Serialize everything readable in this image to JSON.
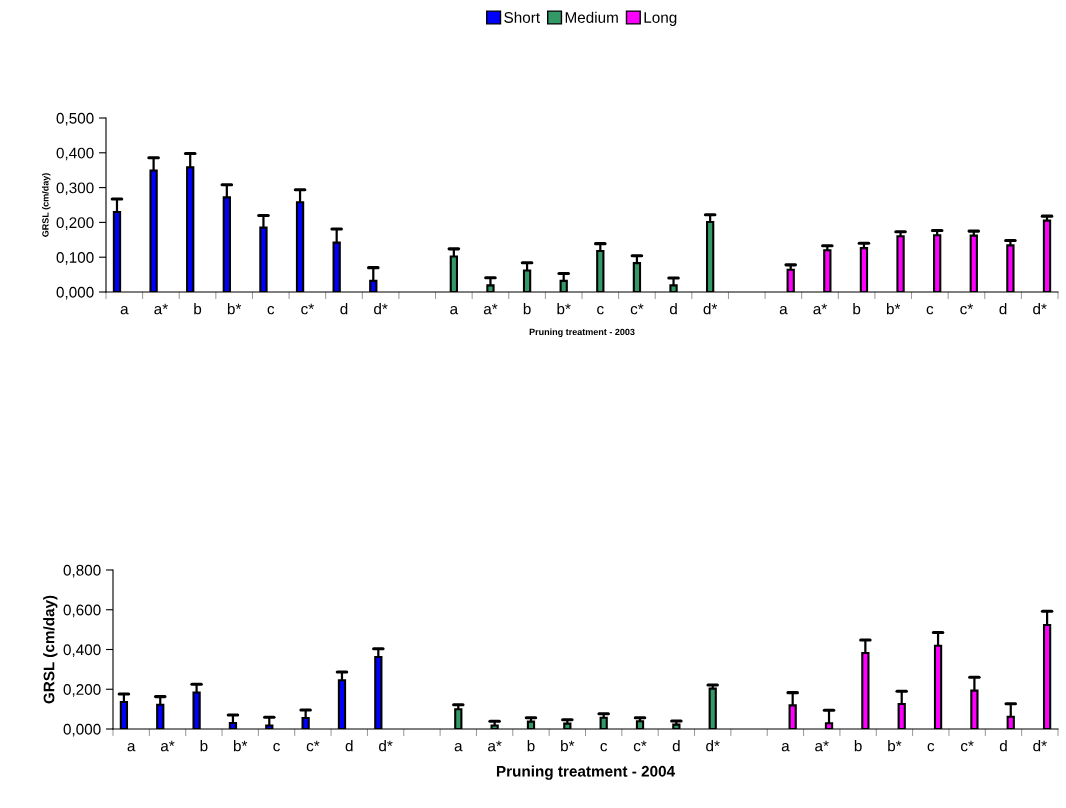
{
  "chart_data": [
    {
      "type": "bar",
      "categories": [
        "a",
        "a*",
        "b",
        "b*",
        "c",
        "c*",
        "d",
        "d*",
        null,
        "a",
        "a*",
        "b",
        "b*",
        "c",
        "c*",
        "d",
        "d*",
        null,
        "a",
        "a*",
        "b",
        "b*",
        "c",
        "c*",
        "d",
        "d*"
      ],
      "xlabel": "Pruning treatment - 2003",
      "ylabel": "GRSL (cm/day)",
      "ylim": [
        0,
        0.5
      ],
      "yticks": [
        {
          "value": 0,
          "label": "0,000"
        },
        {
          "value": 0.1,
          "label": "0,100"
        },
        {
          "value": 0.2,
          "label": "0,200"
        },
        {
          "value": 0.3,
          "label": "0,300"
        },
        {
          "value": 0.4,
          "label": "0,400"
        },
        {
          "value": 0.5,
          "label": "0,500"
        }
      ],
      "legend": "top",
      "grid": false,
      "series": [
        {
          "name": "Short",
          "color": "#0000ff",
          "values": [
            0.23,
            0.349,
            0.358,
            0.272,
            0.185,
            0.258,
            0.142,
            0.032,
            null,
            null,
            null,
            null,
            null,
            null,
            null,
            null,
            null,
            null,
            null,
            null,
            null,
            null,
            null,
            null,
            null,
            null
          ],
          "errors": [
            [
              0.23,
              0.267
            ],
            [
              0.349,
              0.386
            ],
            [
              0.358,
              0.398
            ],
            [
              0.272,
              0.308
            ],
            [
              0.185,
              0.22
            ],
            [
              0.258,
              0.294
            ],
            [
              0.142,
              0.181
            ],
            [
              0.032,
              0.07
            ],
            null,
            null,
            null,
            null,
            null,
            null,
            null,
            null,
            null,
            null,
            null,
            null,
            null,
            null,
            null,
            null,
            null,
            null
          ]
        },
        {
          "name": "Medium",
          "color": "#339966",
          "values": [
            null,
            null,
            null,
            null,
            null,
            null,
            null,
            null,
            null,
            0.102,
            0.019,
            0.062,
            0.032,
            0.118,
            0.083,
            0.019,
            0.201,
            null,
            null,
            null,
            null,
            null,
            null,
            null,
            null,
            null
          ],
          "errors": [
            null,
            null,
            null,
            null,
            null,
            null,
            null,
            null,
            null,
            [
              0.102,
              0.124
            ],
            [
              0.019,
              0.041
            ],
            [
              0.062,
              0.084
            ],
            [
              0.032,
              0.053
            ],
            [
              0.118,
              0.139
            ],
            [
              0.083,
              0.104
            ],
            [
              0.019,
              0.04
            ],
            [
              0.201,
              0.222
            ],
            null,
            null,
            null,
            null,
            null,
            null,
            null,
            null,
            null
          ]
        },
        {
          "name": "Long",
          "color": "#ff00ff",
          "values": [
            null,
            null,
            null,
            null,
            null,
            null,
            null,
            null,
            null,
            null,
            null,
            null,
            null,
            null,
            null,
            null,
            null,
            null,
            0.064,
            0.12,
            0.126,
            0.16,
            0.163,
            0.162,
            0.134,
            0.205
          ],
          "errors": [
            null,
            null,
            null,
            null,
            null,
            null,
            null,
            null,
            null,
            null,
            null,
            null,
            null,
            null,
            null,
            null,
            null,
            null,
            [
              0.064,
              0.078
            ],
            [
              0.12,
              0.133
            ],
            [
              0.126,
              0.14
            ],
            [
              0.16,
              0.173
            ],
            [
              0.163,
              0.177
            ],
            [
              0.162,
              0.175
            ],
            [
              0.134,
              0.148
            ],
            [
              0.205,
              0.218
            ]
          ]
        }
      ]
    },
    {
      "type": "bar",
      "categories": [
        "a",
        "a*",
        "b",
        "b*",
        "c",
        "c*",
        "d",
        "d*",
        null,
        "a",
        "a*",
        "b",
        "b*",
        "c",
        "c*",
        "d",
        "d*",
        null,
        "a",
        "a*",
        "b",
        "b*",
        "c",
        "c*",
        "d",
        "d*"
      ],
      "xlabel": "Pruning treatment - 2004",
      "ylabel": "GRSL (cm/day)",
      "ylim": [
        0,
        0.8
      ],
      "yticks": [
        {
          "value": 0,
          "label": "0,000"
        },
        {
          "value": 0.2,
          "label": "0,200"
        },
        {
          "value": 0.4,
          "label": "0,400"
        },
        {
          "value": 0.6,
          "label": "0,600"
        },
        {
          "value": 0.8,
          "label": "0,800"
        }
      ],
      "grid": false,
      "series": [
        {
          "color": "#0000ff",
          "values": [
            0.136,
            0.122,
            0.184,
            0.03,
            0.018,
            0.055,
            0.245,
            0.362,
            null,
            null,
            null,
            null,
            null,
            null,
            null,
            null,
            null,
            null,
            null,
            null,
            null,
            null,
            null,
            null,
            null,
            null
          ],
          "errors": [
            [
              0.136,
              0.176
            ],
            [
              0.122,
              0.163
            ],
            [
              0.184,
              0.225
            ],
            [
              0.03,
              0.07
            ],
            [
              0.018,
              0.059
            ],
            [
              0.055,
              0.096
            ],
            [
              0.245,
              0.287
            ],
            [
              0.362,
              0.404
            ],
            null,
            null,
            null,
            null,
            null,
            null,
            null,
            null,
            null,
            null,
            null,
            null,
            null,
            null,
            null,
            null,
            null,
            null
          ]
        },
        {
          "color": "#339966",
          "values": [
            null,
            null,
            null,
            null,
            null,
            null,
            null,
            null,
            null,
            0.099,
            0.018,
            0.037,
            0.027,
            0.057,
            0.039,
            0.022,
            0.203,
            null,
            null,
            null,
            null,
            null,
            null,
            null,
            null,
            null
          ],
          "errors": [
            null,
            null,
            null,
            null,
            null,
            null,
            null,
            null,
            null,
            [
              0.099,
              0.122
            ],
            [
              0.018,
              0.039
            ],
            [
              0.037,
              0.057
            ],
            [
              0.027,
              0.047
            ],
            [
              0.057,
              0.077
            ],
            [
              0.039,
              0.057
            ],
            [
              0.022,
              0.04
            ],
            [
              0.203,
              0.221
            ],
            null,
            null,
            null,
            null,
            null,
            null,
            null,
            null,
            null
          ]
        },
        {
          "color": "#ff00ff",
          "values": [
            null,
            null,
            null,
            null,
            null,
            null,
            null,
            null,
            null,
            null,
            null,
            null,
            null,
            null,
            null,
            null,
            null,
            null,
            0.119,
            0.029,
            0.382,
            0.126,
            0.419,
            0.193,
            0.062,
            0.523
          ],
          "errors": [
            null,
            null,
            null,
            null,
            null,
            null,
            null,
            null,
            null,
            null,
            null,
            null,
            null,
            null,
            null,
            null,
            null,
            null,
            [
              0.119,
              0.183
            ],
            [
              0.029,
              0.094
            ],
            [
              0.382,
              0.448
            ],
            [
              0.126,
              0.19
            ],
            [
              0.419,
              0.486
            ],
            [
              0.193,
              0.26
            ],
            [
              0.062,
              0.127
            ],
            [
              0.523,
              0.592
            ]
          ]
        }
      ]
    }
  ]
}
